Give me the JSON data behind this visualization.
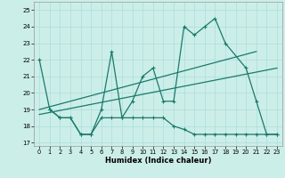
{
  "xlabel": "Humidex (Indice chaleur)",
  "xlim": [
    -0.5,
    23.5
  ],
  "ylim": [
    16.8,
    25.5
  ],
  "yticks": [
    17,
    18,
    19,
    20,
    21,
    22,
    23,
    24,
    25
  ],
  "xticks": [
    0,
    1,
    2,
    3,
    4,
    5,
    6,
    7,
    8,
    9,
    10,
    11,
    12,
    13,
    14,
    15,
    16,
    17,
    18,
    19,
    20,
    21,
    22,
    23
  ],
  "bg_color": "#cceee8",
  "line_color": "#1a7a6a",
  "grid_color": "#aadddd",
  "line1": {
    "x": [
      0,
      1,
      2,
      3,
      4,
      5,
      6,
      7,
      8,
      9,
      10,
      11,
      12,
      13,
      14,
      15,
      16,
      17,
      18,
      20,
      21,
      22,
      23
    ],
    "y": [
      22,
      19,
      18.5,
      18.5,
      17.5,
      17.5,
      19,
      22.5,
      18.5,
      19.5,
      21,
      21.5,
      19.5,
      19.5,
      24,
      23.5,
      24,
      24.5,
      23,
      21.5,
      19.5,
      17.5,
      17.5
    ]
  },
  "line2": {
    "x": [
      1,
      2,
      3,
      4,
      5,
      6,
      7,
      8,
      9,
      10,
      11,
      12,
      13,
      14,
      15,
      16,
      17,
      18,
      19,
      20,
      21,
      22,
      23
    ],
    "y": [
      19,
      18.5,
      18.5,
      17.5,
      17.5,
      18.5,
      18.5,
      18.5,
      18.5,
      18.5,
      18.5,
      18.5,
      18.0,
      17.8,
      17.5,
      17.5,
      17.5,
      17.5,
      17.5,
      17.5,
      17.5,
      17.5,
      17.5
    ]
  },
  "trend1": {
    "x": [
      0,
      21
    ],
    "y": [
      19.0,
      22.5
    ]
  },
  "trend2": {
    "x": [
      0,
      23
    ],
    "y": [
      18.7,
      21.5
    ]
  }
}
